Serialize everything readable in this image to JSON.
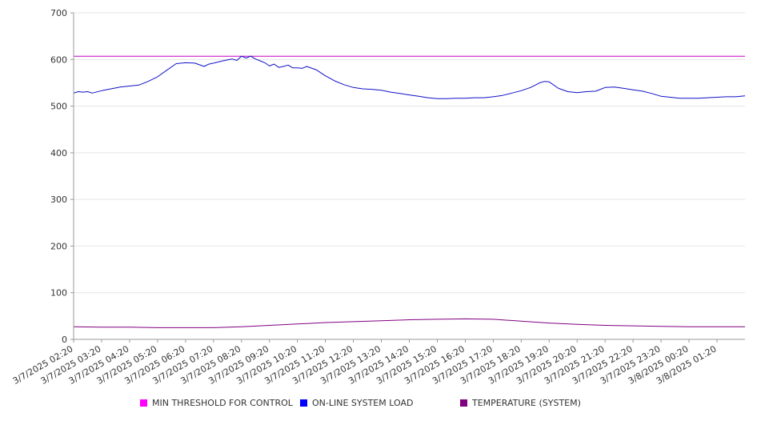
{
  "chart_data": {
    "type": "line",
    "title": "",
    "xlabel": "",
    "ylabel": "",
    "ylim": [
      0,
      700
    ],
    "y_ticks": [
      0,
      100,
      200,
      300,
      400,
      500,
      600,
      700
    ],
    "grid": true,
    "legend_position": "bottom",
    "x_tick_labels": [
      "3/7/2025 02:20",
      "3/7/2025 03:20",
      "3/7/2025 04:20",
      "3/7/2025 05:20",
      "3/7/2025 06:20",
      "3/7/2025 07:20",
      "3/7/2025 08:20",
      "3/7/2025 09:20",
      "3/7/2025 10:20",
      "3/7/2025 11:20",
      "3/7/2025 12:20",
      "3/7/2025 13:20",
      "3/7/2025 14:20",
      "3/7/2025 15:20",
      "3/7/2025 16:20",
      "3/7/2025 17:20",
      "3/7/2025 18:20",
      "3/7/2025 19:20",
      "3/7/2025 20:20",
      "3/7/2025 21:20",
      "3/7/2025 22:20",
      "3/7/2025 23:20",
      "3/8/2025 00:20",
      "3/8/2025 01:20"
    ],
    "x_start": "3/7/2025 02:20",
    "x_end": "3/8/2025 02:20",
    "series": [
      {
        "name": "MIN THRESHOLD FOR CONTROL",
        "color": "#c800c8",
        "x": [
          "3/7/2025 02:20",
          "3/8/2025 02:20"
        ],
        "values": [
          607,
          607
        ]
      },
      {
        "name": "ON-LINE SYSTEM LOAD",
        "color": "#1010c8",
        "x": [
          "3/7/2025 02:20",
          "3/7/2025 02:30",
          "3/7/2025 02:40",
          "3/7/2025 02:50",
          "3/7/2025 03:00",
          "3/7/2025 03:20",
          "3/7/2025 03:40",
          "3/7/2025 04:00",
          "3/7/2025 04:20",
          "3/7/2025 04:40",
          "3/7/2025 05:00",
          "3/7/2025 05:20",
          "3/7/2025 05:40",
          "3/7/2025 06:00",
          "3/7/2025 06:20",
          "3/7/2025 06:40",
          "3/7/2025 07:00",
          "3/7/2025 07:10",
          "3/7/2025 07:20",
          "3/7/2025 07:40",
          "3/7/2025 08:00",
          "3/7/2025 08:10",
          "3/7/2025 08:20",
          "3/7/2025 08:30",
          "3/7/2025 08:40",
          "3/7/2025 08:50",
          "3/7/2025 09:00",
          "3/7/2025 09:10",
          "3/7/2025 09:20",
          "3/7/2025 09:30",
          "3/7/2025 09:40",
          "3/7/2025 09:50",
          "3/7/2025 10:00",
          "3/7/2025 10:10",
          "3/7/2025 10:20",
          "3/7/2025 10:30",
          "3/7/2025 10:40",
          "3/7/2025 11:00",
          "3/7/2025 11:20",
          "3/7/2025 11:40",
          "3/7/2025 12:00",
          "3/7/2025 12:20",
          "3/7/2025 12:40",
          "3/7/2025 13:00",
          "3/7/2025 13:20",
          "3/7/2025 13:40",
          "3/7/2025 14:00",
          "3/7/2025 14:20",
          "3/7/2025 14:40",
          "3/7/2025 15:00",
          "3/7/2025 15:20",
          "3/7/2025 15:40",
          "3/7/2025 16:00",
          "3/7/2025 16:20",
          "3/7/2025 16:40",
          "3/7/2025 17:00",
          "3/7/2025 17:20",
          "3/7/2025 17:40",
          "3/7/2025 18:00",
          "3/7/2025 18:20",
          "3/7/2025 18:40",
          "3/7/2025 19:00",
          "3/7/2025 19:10",
          "3/7/2025 19:20",
          "3/7/2025 19:40",
          "3/7/2025 20:00",
          "3/7/2025 20:20",
          "3/7/2025 20:40",
          "3/7/2025 21:00",
          "3/7/2025 21:20",
          "3/7/2025 21:40",
          "3/7/2025 22:00",
          "3/7/2025 22:20",
          "3/7/2025 22:40",
          "3/7/2025 23:00",
          "3/7/2025 23:20",
          "3/7/2025 23:40",
          "3/8/2025 00:00",
          "3/8/2025 00:20",
          "3/8/2025 00:40",
          "3/8/2025 01:00",
          "3/8/2025 01:20",
          "3/8/2025 01:40",
          "3/8/2025 02:00",
          "3/8/2025 02:20"
        ],
        "values": [
          528,
          531,
          530,
          531,
          528,
          533,
          537,
          541,
          543,
          545,
          553,
          563,
          577,
          591,
          593,
          592,
          585,
          590,
          592,
          597,
          601,
          598,
          607,
          603,
          607,
          601,
          597,
          593,
          586,
          590,
          583,
          585,
          588,
          582,
          582,
          581,
          585,
          578,
          565,
          554,
          546,
          540,
          537,
          536,
          534,
          530,
          527,
          524,
          521,
          518,
          516,
          516,
          517,
          517,
          518,
          518,
          520,
          523,
          528,
          533,
          540,
          550,
          553,
          552,
          538,
          531,
          529,
          531,
          532,
          540,
          541,
          538,
          535,
          532,
          527,
          521,
          519,
          517,
          517,
          517,
          518,
          519,
          520,
          520,
          522
        ]
      },
      {
        "name": "TEMPERATURE (SYSTEM)",
        "color": "#800080",
        "x": [
          "3/7/2025 02:20",
          "3/7/2025 03:20",
          "3/7/2025 04:20",
          "3/7/2025 05:20",
          "3/7/2025 06:20",
          "3/7/2025 07:20",
          "3/7/2025 08:20",
          "3/7/2025 09:20",
          "3/7/2025 10:20",
          "3/7/2025 11:20",
          "3/7/2025 12:20",
          "3/7/2025 13:20",
          "3/7/2025 14:20",
          "3/7/2025 15:20",
          "3/7/2025 16:20",
          "3/7/2025 17:20",
          "3/7/2025 18:20",
          "3/7/2025 19:20",
          "3/7/2025 20:20",
          "3/7/2025 21:20",
          "3/7/2025 22:20",
          "3/7/2025 23:20",
          "3/8/2025 00:20",
          "3/8/2025 01:20",
          "3/8/2025 02:20"
        ],
        "values": [
          27,
          26,
          26,
          25,
          25,
          25,
          27,
          30,
          33,
          36,
          38,
          40,
          42,
          43,
          44,
          43,
          39,
          35,
          32,
          30,
          29,
          28,
          27,
          27,
          27
        ]
      }
    ]
  }
}
